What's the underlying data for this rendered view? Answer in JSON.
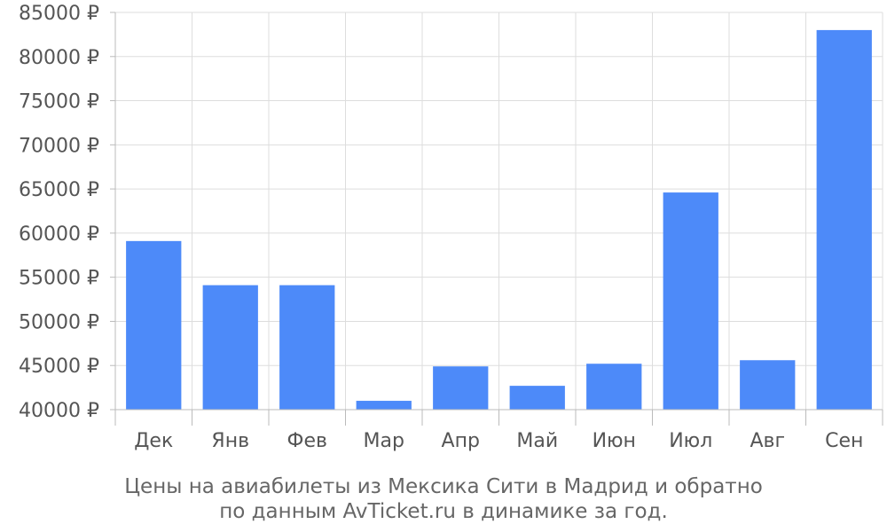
{
  "chart_data": {
    "type": "bar",
    "categories": [
      "Дек",
      "Янв",
      "Фев",
      "Мар",
      "Апр",
      "Май",
      "Июн",
      "Июл",
      "Авг",
      "Сен"
    ],
    "values": [
      59100,
      54100,
      54100,
      41000,
      44900,
      42700,
      45200,
      64600,
      45600,
      83000
    ],
    "y_ticks": [
      40000,
      45000,
      50000,
      55000,
      60000,
      65000,
      70000,
      75000,
      80000,
      85000
    ],
    "y_tick_suffix": " ₽",
    "ylim": [
      40000,
      85000
    ],
    "grid": true,
    "bar_color": "#4d8af9",
    "caption_lines": [
      "Цены на авиабилеты из Мексика Сити в Мадрид и обратно",
      "по данным AvTicket.ru в динамике за год."
    ]
  }
}
